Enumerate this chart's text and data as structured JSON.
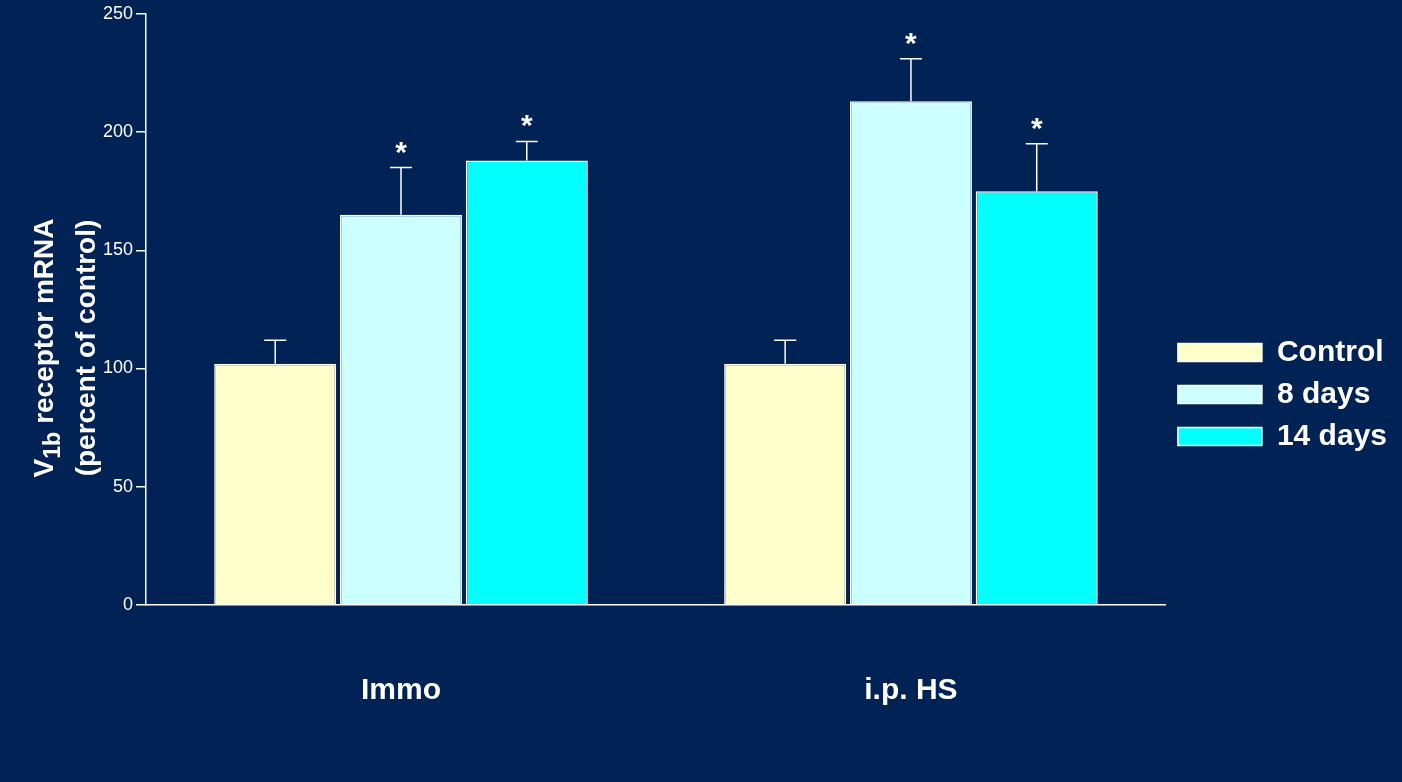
{
  "chart_data": {
    "type": "bar",
    "ylabel": "V$_{1b}$ receptor mRNA\n(percent of control)",
    "categories": [
      "Immo",
      "i.p. HS"
    ],
    "series": [
      {
        "name": "Control",
        "color": "#ffffcc",
        "values": [
          102,
          102
        ],
        "errors": [
          [
            102,
            112
          ],
          [
            102,
            112
          ]
        ]
      },
      {
        "name": "8 days",
        "color": "#ccffff",
        "values": [
          165,
          213
        ],
        "errors": [
          [
            165,
            185
          ],
          [
            213,
            231
          ]
        ],
        "value_labels": [
          "*",
          "*"
        ]
      },
      {
        "name": "14 days",
        "color": "#00ffff",
        "values": [
          188,
          175
        ],
        "errors": [
          [
            188,
            196
          ],
          [
            175,
            195
          ]
        ],
        "value_labels": [
          "*",
          "*"
        ]
      }
    ],
    "ylim": [
      0,
      250
    ],
    "yticks": [
      0,
      50,
      100,
      150,
      200,
      250
    ],
    "grid": false,
    "legend": "right"
  }
}
